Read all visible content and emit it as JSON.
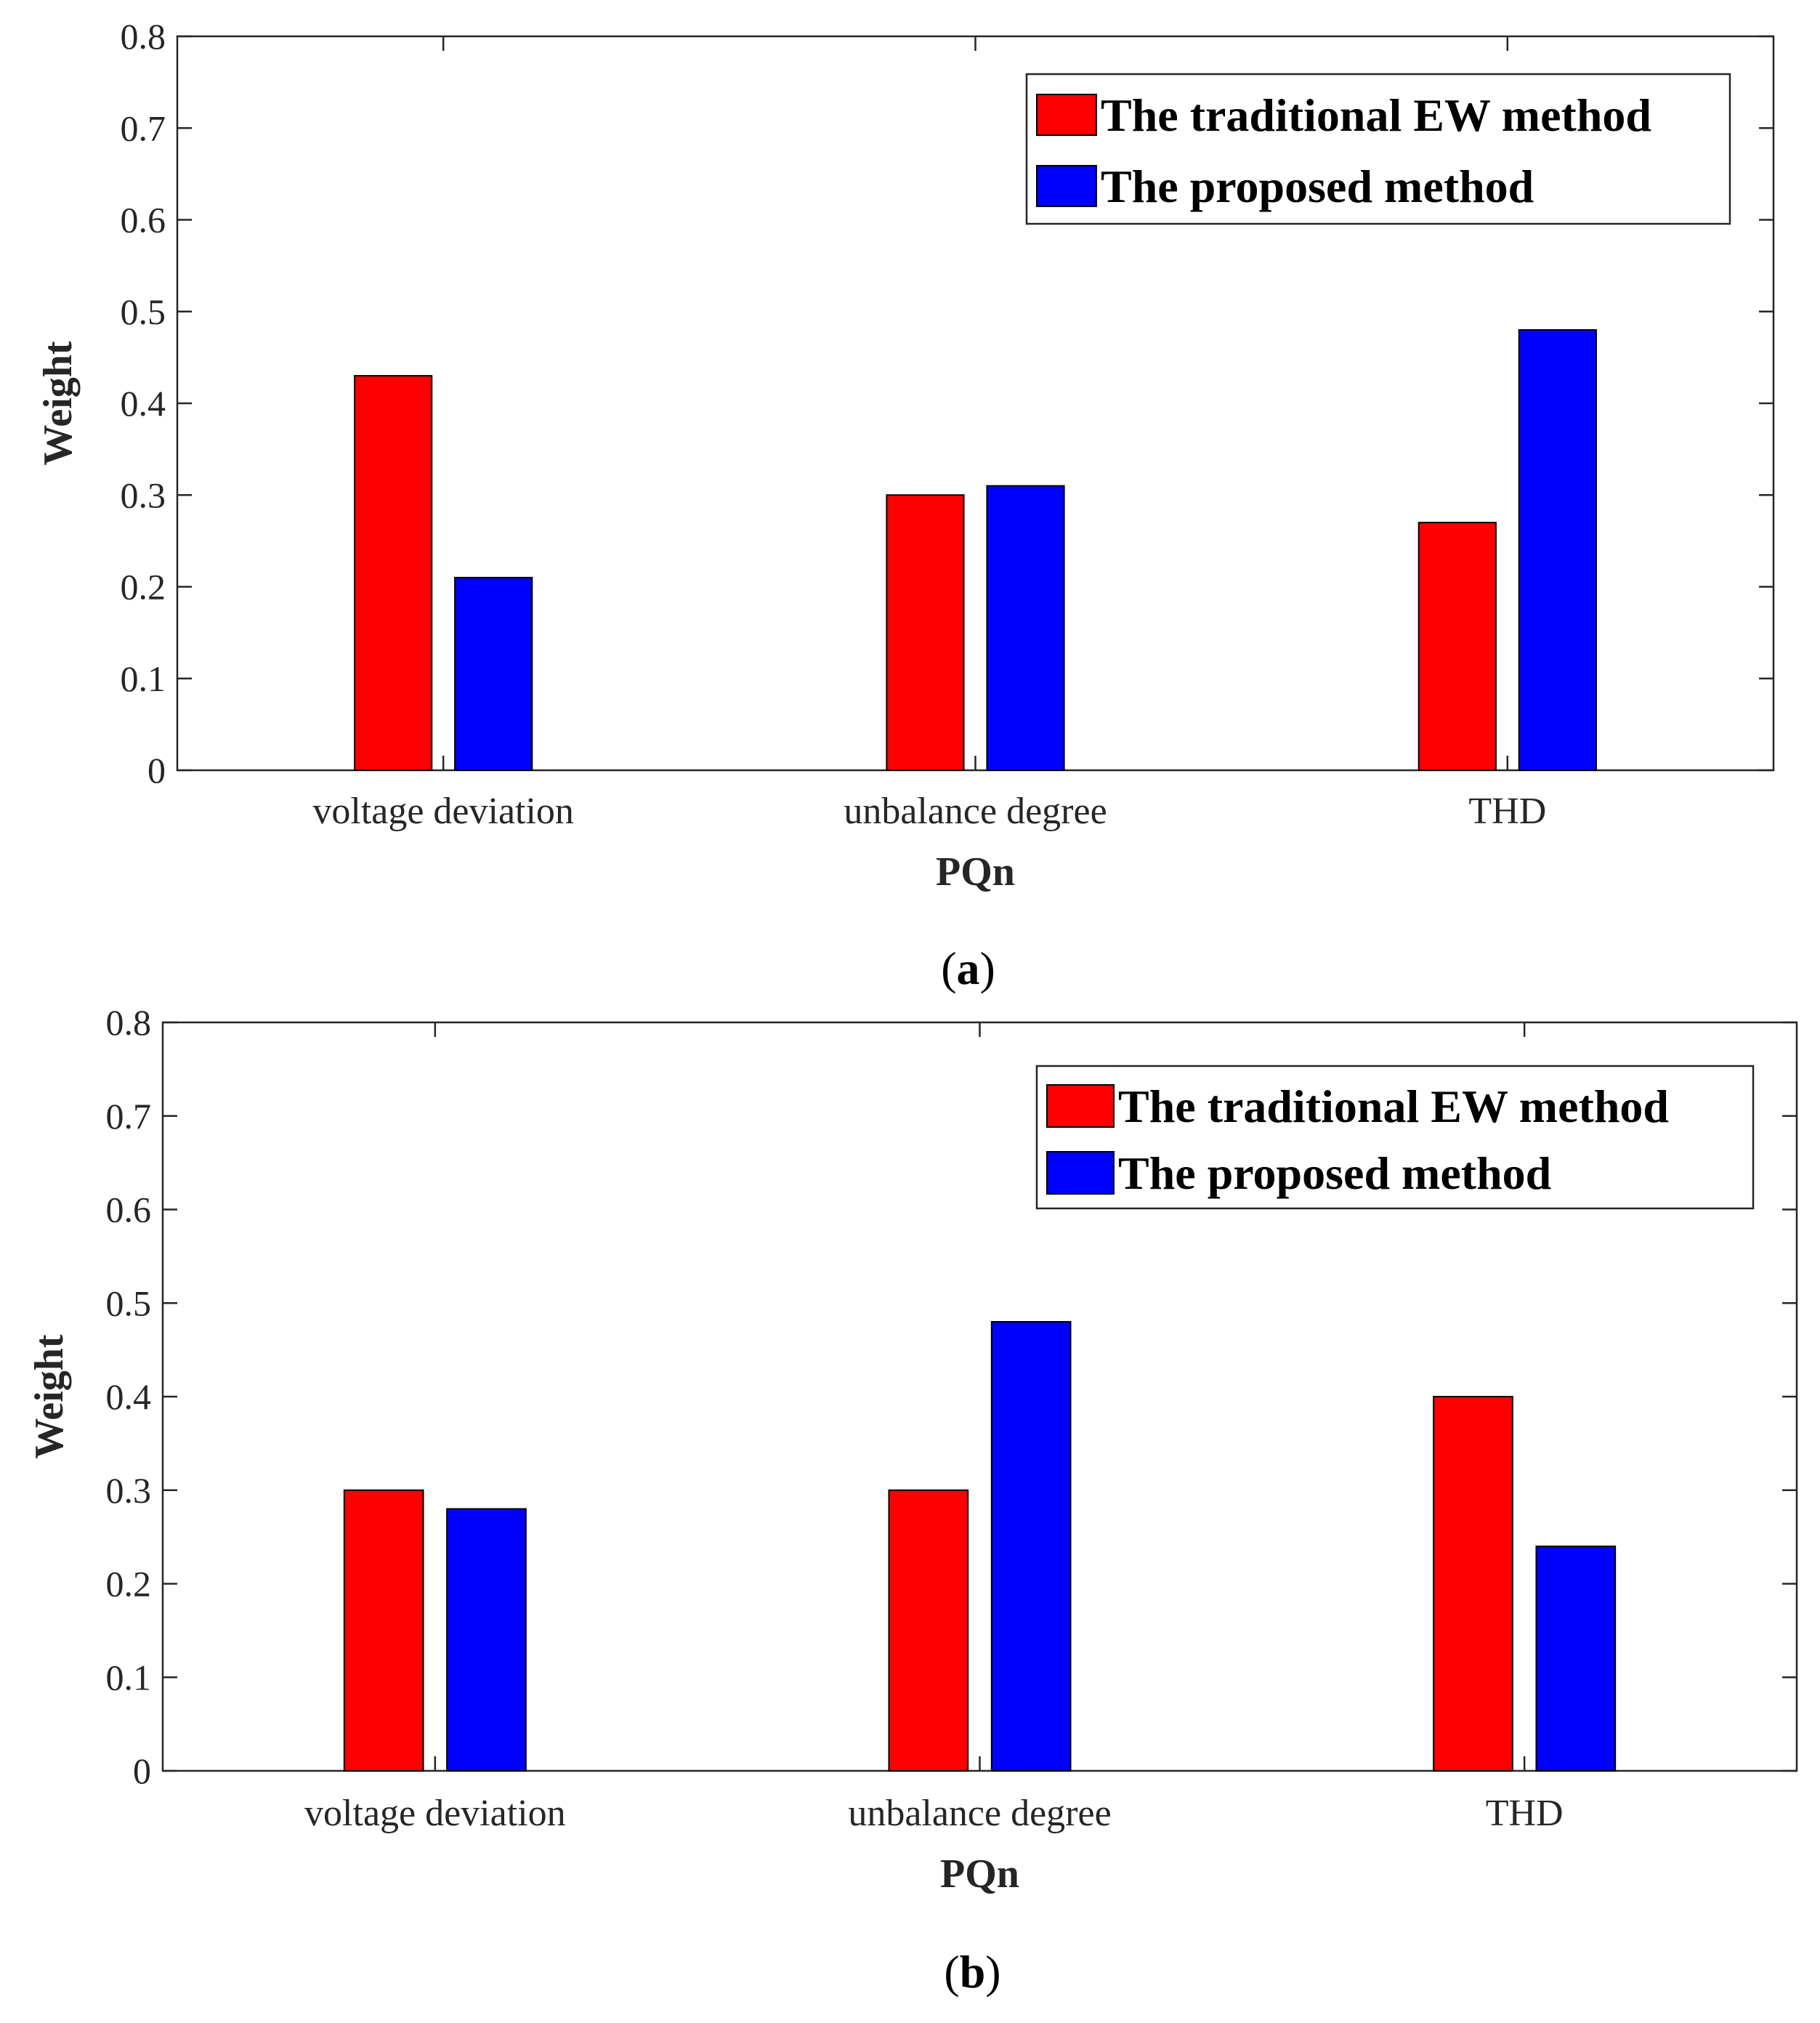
{
  "chart_data": [
    {
      "type": "bar",
      "panel": "a",
      "caption": [
        "(",
        "a",
        ")"
      ],
      "categories": [
        "voltage deviation",
        "unbalance degree",
        "THD"
      ],
      "series": [
        {
          "name": "The traditional EW method",
          "color": "#ff0000",
          "values": [
            0.43,
            0.3,
            0.27
          ]
        },
        {
          "name": "The proposed method",
          "color": "#0000ff",
          "values": [
            0.21,
            0.31,
            0.48
          ]
        }
      ],
      "xlabel": "PQn",
      "ylabel": "Weight",
      "ylim": [
        0,
        0.8
      ],
      "yticks": [
        "0",
        "0.1",
        "0.2",
        "0.3",
        "0.4",
        "0.5",
        "0.6",
        "0.7",
        "0.8"
      ],
      "legend": "top-right"
    },
    {
      "type": "bar",
      "panel": "b",
      "caption": [
        "(",
        "b",
        ")"
      ],
      "categories": [
        "voltage deviation",
        "unbalance degree",
        "THD"
      ],
      "series": [
        {
          "name": "The traditional EW method",
          "color": "#ff0000",
          "values": [
            0.3,
            0.3,
            0.4
          ]
        },
        {
          "name": "The proposed method",
          "color": "#0000ff",
          "values": [
            0.28,
            0.48,
            0.24
          ]
        }
      ],
      "xlabel": "PQn",
      "ylabel": "Weight",
      "ylim": [
        0,
        0.8
      ],
      "yticks": [
        "0",
        "0.1",
        "0.2",
        "0.3",
        "0.4",
        "0.5",
        "0.6",
        "0.7",
        "0.8"
      ],
      "legend": "top-right"
    }
  ]
}
